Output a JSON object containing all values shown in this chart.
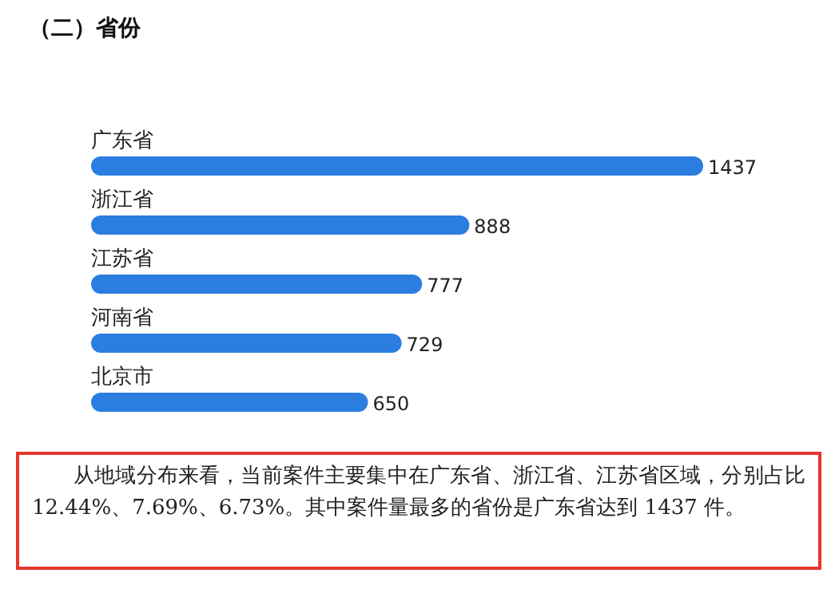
{
  "chart_data": {
    "type": "bar",
    "orientation": "horizontal",
    "title": "（二）省份",
    "categories": [
      "广东省",
      "浙江省",
      "江苏省",
      "河南省",
      "北京市"
    ],
    "values": [
      1437,
      888,
      777,
      729,
      650
    ],
    "color": "#2b7de0",
    "data_labels": true,
    "annotations": [
      "从地域分布来看，当前案件主要集中在广东省、浙江省、江苏省区域，分别占比 12.44%、7.69%、6.73%。其中案件量最多的省份是广东省达到 1437 件。"
    ]
  }
}
